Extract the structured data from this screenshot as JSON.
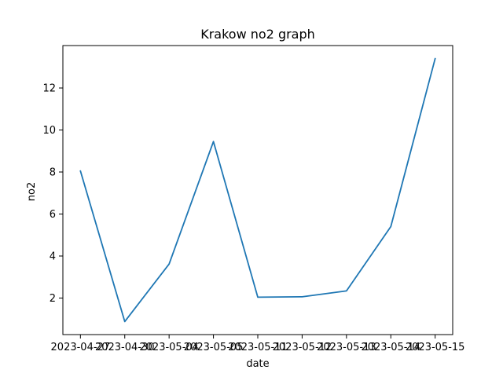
{
  "chart_data": {
    "type": "line",
    "title": "Krakow no2 graph",
    "xlabel": "date",
    "ylabel": "no2",
    "categories": [
      "2023-04-27",
      "2023-04-30",
      "2023-05-04",
      "2023-05-05",
      "2023-05-11",
      "2023-05-12",
      "2023-05-13",
      "2023-05-14",
      "2023-05-15"
    ],
    "series": [
      {
        "values": [
          8.05,
          0.88,
          3.62,
          9.45,
          2.04,
          2.06,
          2.34,
          5.4,
          13.4
        ],
        "color": "#1f77b4"
      }
    ],
    "yticks": [
      2,
      4,
      6,
      8,
      10,
      12
    ],
    "ylim": [
      0.26,
      14.02
    ],
    "grid": false,
    "legend": "none"
  }
}
